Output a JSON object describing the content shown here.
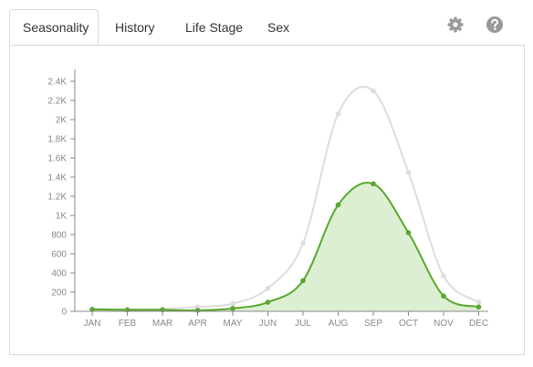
{
  "tabs": [
    {
      "label": "Seasonality",
      "active": true
    },
    {
      "label": "History",
      "active": false
    },
    {
      "label": "Life Stage",
      "active": false
    },
    {
      "label": "Sex",
      "active": false
    }
  ],
  "toolbar": {
    "settings_icon": "gear-icon",
    "help_icon": "question-circle-icon"
  },
  "colors": {
    "primary_series": "#5aa72d",
    "primary_fill": "#dcefd2",
    "secondary_series": "#dddddd",
    "axis": "#888888",
    "icon": "#999999"
  },
  "chart_data": {
    "type": "area",
    "categories": [
      "JAN",
      "FEB",
      "MAR",
      "APR",
      "MAY",
      "JUN",
      "JUL",
      "AUG",
      "SEP",
      "OCT",
      "NOV",
      "DEC"
    ],
    "yticks": [
      "0",
      "200",
      "400",
      "600",
      "800",
      "1K",
      "1.2K",
      "1.4K",
      "1.6K",
      "1.8K",
      "2K",
      "2.2K",
      "2.4K"
    ],
    "ylim": [
      0,
      2400
    ],
    "grid": false,
    "series": [
      {
        "values": [
          25,
          20,
          25,
          45,
          80,
          240,
          710,
          2060,
          2300,
          1450,
          370,
          95
        ]
      },
      {
        "values": [
          20,
          15,
          15,
          10,
          30,
          95,
          320,
          1110,
          1330,
          820,
          160,
          45
        ]
      }
    ]
  }
}
